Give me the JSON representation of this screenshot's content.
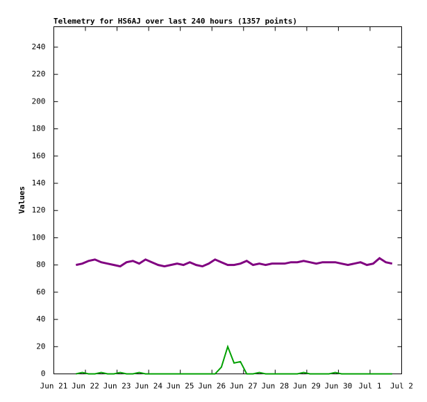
{
  "chart_data": {
    "type": "line",
    "title": "Telemetry for HS6AJ over last 240 hours (1357 points)",
    "y_label": "Values",
    "x": [
      0.7,
      0.9,
      1.1,
      1.3,
      1.5,
      1.7,
      1.9,
      2.1,
      2.3,
      2.5,
      2.7,
      2.9,
      3.1,
      3.3,
      3.5,
      3.7,
      3.9,
      4.1,
      4.3,
      4.5,
      4.7,
      4.9,
      5.1,
      5.3,
      5.5,
      5.7,
      5.9,
      6.1,
      6.3,
      6.5,
      6.7,
      6.9,
      7.1,
      7.3,
      7.5,
      7.7,
      7.9,
      8.1,
      8.3,
      8.5,
      8.7,
      8.9,
      9.1,
      9.3,
      9.5,
      9.7,
      9.9,
      10.1,
      10.3,
      10.5,
      10.7
    ],
    "series": [
      {
        "color": "#800080",
        "values": [
          80,
          81,
          83,
          84,
          82,
          81,
          80,
          79,
          82,
          83,
          81,
          84,
          82,
          80,
          79,
          80,
          81,
          80,
          82,
          80,
          79,
          81,
          84,
          82,
          80,
          80,
          81,
          83,
          80,
          81,
          80,
          81,
          81,
          81,
          82,
          82,
          83,
          82,
          81,
          82,
          82,
          82,
          81,
          80,
          81,
          82,
          80,
          81,
          85,
          82,
          81
        ]
      },
      {
        "color": "#00a000",
        "values": [
          0,
          1,
          0,
          0,
          1,
          0,
          0,
          1,
          0,
          0,
          1,
          0,
          0,
          0,
          0,
          0,
          0,
          0,
          0,
          0,
          0,
          0,
          0,
          5,
          20,
          8,
          9,
          0,
          0,
          1,
          0,
          0,
          0,
          0,
          0,
          0,
          1,
          0,
          0,
          0,
          0,
          1,
          0,
          0,
          0,
          0,
          0,
          0,
          0,
          0,
          0
        ]
      }
    ],
    "xlim": [
      0,
      11
    ],
    "xticks": [
      {
        "value": 0,
        "label": "Jun 21"
      },
      {
        "value": 1,
        "label": "Jun 22"
      },
      {
        "value": 2,
        "label": "Jun 23"
      },
      {
        "value": 3,
        "label": "Jun 24"
      },
      {
        "value": 4,
        "label": "Jun 25"
      },
      {
        "value": 5,
        "label": "Jun 26"
      },
      {
        "value": 6,
        "label": "Jun 27"
      },
      {
        "value": 7,
        "label": "Jun 28"
      },
      {
        "value": 8,
        "label": "Jun 29"
      },
      {
        "value": 9,
        "label": "Jun 30"
      },
      {
        "value": 10,
        "label": "Jul 1"
      },
      {
        "value": 11,
        "label": "Jul 2"
      }
    ],
    "ylim": [
      0,
      255
    ],
    "yticks": [
      0,
      20,
      40,
      60,
      80,
      100,
      120,
      140,
      160,
      180,
      200,
      220,
      240
    ]
  }
}
